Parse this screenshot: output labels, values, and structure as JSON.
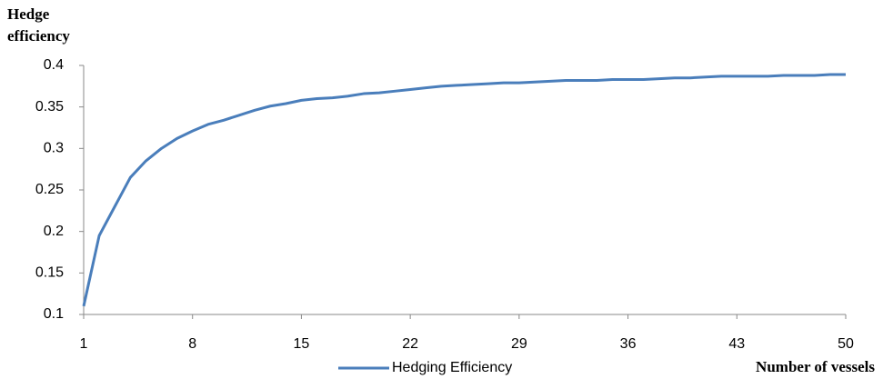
{
  "chart_data": {
    "type": "line",
    "y_label": "Hedge efficiency",
    "x_label": "Number of vessels",
    "x": [
      1,
      2,
      3,
      4,
      5,
      6,
      7,
      8,
      9,
      10,
      11,
      12,
      13,
      14,
      15,
      16,
      17,
      18,
      19,
      20,
      21,
      22,
      23,
      24,
      25,
      26,
      27,
      28,
      29,
      30,
      31,
      32,
      33,
      34,
      35,
      36,
      37,
      38,
      39,
      40,
      41,
      42,
      43,
      44,
      45,
      46,
      47,
      48,
      49,
      50
    ],
    "series": [
      {
        "name": "Hedging Efficiency",
        "color": "#4a7ebb",
        "values": [
          0.11,
          0.195,
          0.23,
          0.265,
          0.285,
          0.3,
          0.312,
          0.321,
          0.329,
          0.334,
          0.34,
          0.346,
          0.351,
          0.354,
          0.358,
          0.36,
          0.361,
          0.363,
          0.366,
          0.367,
          0.369,
          0.371,
          0.373,
          0.375,
          0.376,
          0.377,
          0.378,
          0.379,
          0.379,
          0.38,
          0.381,
          0.382,
          0.382,
          0.382,
          0.383,
          0.383,
          0.383,
          0.384,
          0.385,
          0.385,
          0.386,
          0.387,
          0.387,
          0.387,
          0.387,
          0.388,
          0.388,
          0.388,
          0.389,
          0.389
        ]
      }
    ],
    "xlim": [
      1,
      50
    ],
    "xticks": [
      1,
      8,
      15,
      22,
      29,
      36,
      43,
      50
    ],
    "ylim": [
      0.1,
      0.4
    ],
    "yticks": [
      0.1,
      0.15,
      0.2,
      0.25,
      0.3,
      0.35,
      0.4
    ],
    "grid": false,
    "legend": "bottom"
  }
}
